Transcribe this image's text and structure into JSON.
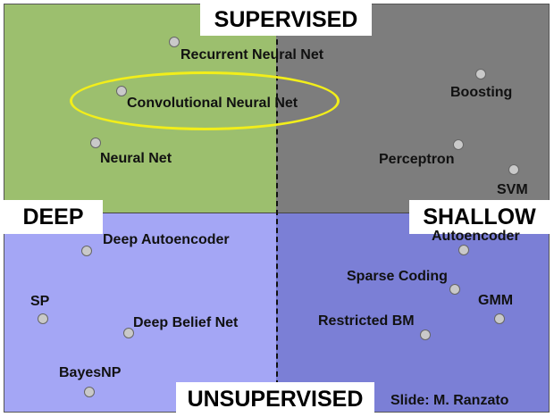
{
  "axes": {
    "top": "SUPERVISED",
    "bottom": "UNSUPERVISED",
    "left": "DEEP",
    "right": "SHALLOW"
  },
  "models": [
    {
      "id": "recurrent-neural-net",
      "label": "Recurrent Neural Net",
      "highlighted": false
    },
    {
      "id": "convolutional-neural-net",
      "label": "Convolutional Neural Net",
      "highlighted": true
    },
    {
      "id": "neural-net",
      "label": "Neural Net",
      "highlighted": false
    },
    {
      "id": "boosting",
      "label": "Boosting",
      "highlighted": false
    },
    {
      "id": "perceptron",
      "label": "Perceptron",
      "highlighted": false
    },
    {
      "id": "svm",
      "label": "SVM",
      "highlighted": false
    },
    {
      "id": "deep-autoencoder",
      "label": "Deep Autoencoder",
      "highlighted": false
    },
    {
      "id": "sp",
      "label": "SP",
      "highlighted": false
    },
    {
      "id": "deep-belief-net",
      "label": "Deep Belief Net",
      "highlighted": false
    },
    {
      "id": "bayesnp",
      "label": "BayesNP",
      "highlighted": false
    },
    {
      "id": "autoencoder",
      "label": "Autoencoder",
      "highlighted": false
    },
    {
      "id": "sparse-coding",
      "label": "Sparse Coding",
      "highlighted": false
    },
    {
      "id": "gmm",
      "label": "GMM",
      "highlighted": false
    },
    {
      "id": "restricted-bm",
      "label": "Restricted BM",
      "highlighted": false
    }
  ],
  "credit": "Slide: M. Ranzato",
  "colors": {
    "deep_supervised": "#9cbf6e",
    "shallow_supervised": "#7d7d7d",
    "deep_unsupervised": "#a4a6f5",
    "shallow_unsupervised": "#7b7fd6",
    "highlight_ring": "#f2ee1a"
  }
}
